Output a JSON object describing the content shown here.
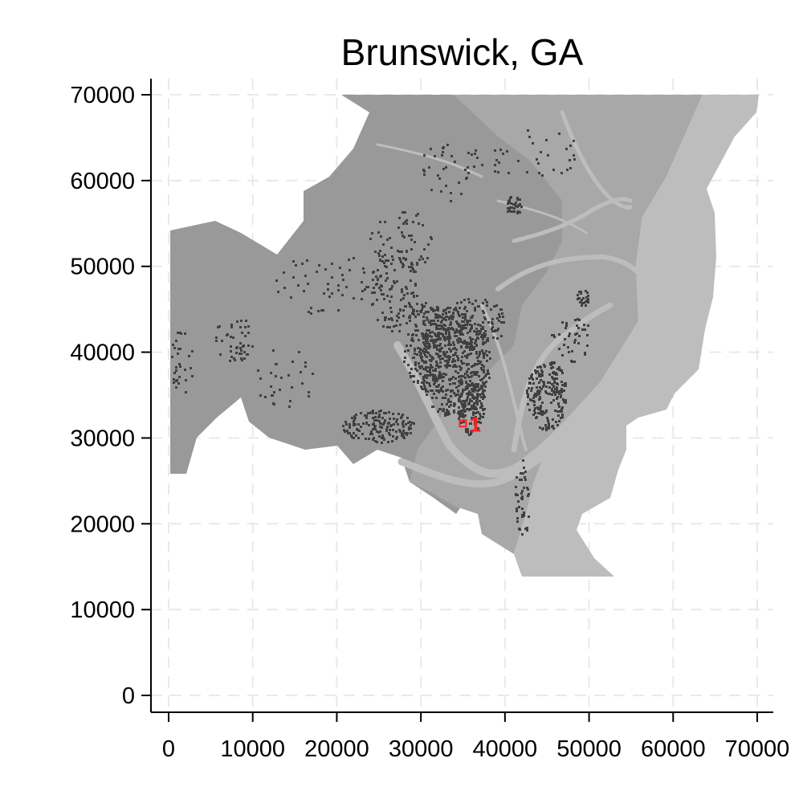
{
  "title": "Brunswick, GA",
  "axes": {
    "x": {
      "min": 0,
      "max": 70000,
      "ticks": [
        0,
        10000,
        20000,
        30000,
        40000,
        50000,
        60000,
        70000
      ],
      "tick_labels": [
        "0",
        "10000",
        "20000",
        "30000",
        "40000",
        "50000",
        "60000",
        "70000"
      ]
    },
    "y": {
      "min": 0,
      "max": 70000,
      "ticks": [
        0,
        10000,
        20000,
        30000,
        40000,
        50000,
        60000,
        70000
      ],
      "tick_labels": [
        "0",
        "10000",
        "20000",
        "30000",
        "40000",
        "50000",
        "60000",
        "70000"
      ]
    },
    "grid": true,
    "grid_style": "dashed",
    "grid_color": "#e9e9e9"
  },
  "colors": {
    "land": "#999999",
    "coastal_land": "#a8a8a8",
    "water": "#bdbdbd",
    "urban": "#404040",
    "marker": "#ff2020"
  },
  "marker": {
    "label": "1",
    "x": 35000,
    "y": 31700
  }
}
